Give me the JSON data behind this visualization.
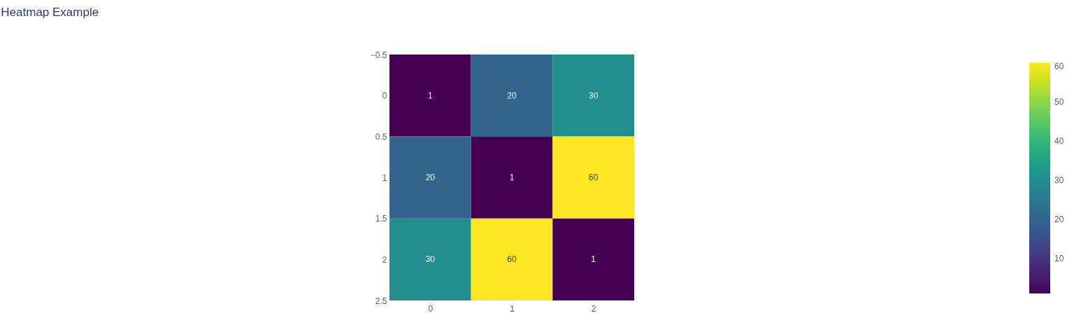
{
  "chart_data": {
    "type": "heatmap",
    "title": "Heatmap Example",
    "categories": [
      "0",
      "1",
      "2"
    ],
    "ylim": [
      2.5,
      -0.5
    ],
    "yticks": [
      {
        "value": -0.5,
        "label": "−0.5"
      },
      0,
      0.5,
      1,
      1.5,
      2,
      2.5
    ],
    "cells": [
      [
        1,
        20,
        30
      ],
      [
        20,
        1,
        60
      ],
      [
        30,
        60,
        1
      ]
    ],
    "clim": [
      1,
      60
    ],
    "cticks": [
      10,
      20,
      30,
      40,
      50,
      60
    ],
    "data_labels": true,
    "grid": false
  }
}
